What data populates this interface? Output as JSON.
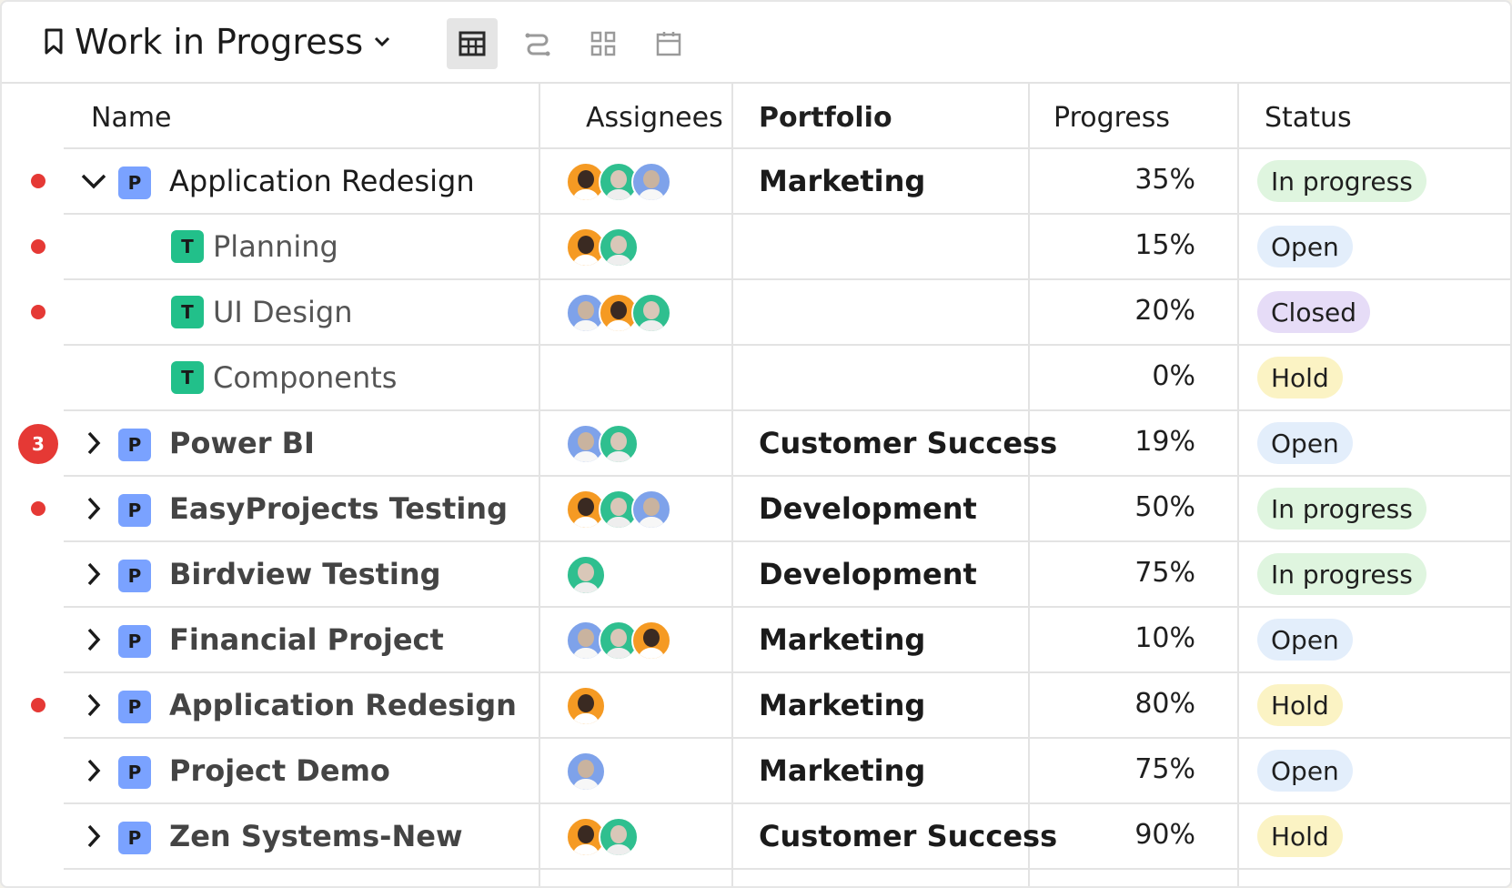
{
  "view": {
    "title": "Work in Progress",
    "icons": [
      "table-view-icon",
      "gantt-view-icon",
      "board-view-icon",
      "calendar-view-icon"
    ],
    "active_view": "table-view-icon"
  },
  "columns": {
    "name": "Name",
    "assignees": "Assignees",
    "portfolio": "Portfolio",
    "progress": "Progress",
    "status": "Status"
  },
  "status_colors": {
    "In progress": "#dff5df",
    "Open": "#e3eefb",
    "Closed": "#e6dcf7",
    "Hold": "#fbf3c4"
  },
  "rows": [
    {
      "marker": "dot",
      "toggle": "expanded",
      "type": "P",
      "name": "Application Redesign",
      "assignees": [
        "orange-dark",
        "green-light",
        "blue-mid"
      ],
      "portfolio": "Marketing",
      "progress": "35%",
      "status": "In progress"
    },
    {
      "marker": "dot",
      "toggle": "none",
      "type": "T",
      "name": "Planning",
      "assignees": [
        "orange-dark",
        "green-light"
      ],
      "portfolio": "",
      "progress": "15%",
      "status": "Open"
    },
    {
      "marker": "dot",
      "toggle": "none",
      "type": "T",
      "name": "UI Design",
      "assignees": [
        "blue-mid",
        "orange-dark",
        "green-light"
      ],
      "portfolio": "",
      "progress": "20%",
      "status": "Closed"
    },
    {
      "marker": "none",
      "toggle": "none",
      "type": "T",
      "name": "Components",
      "assignees": [],
      "portfolio": "",
      "progress": "0%",
      "status": "Hold"
    },
    {
      "marker": "count",
      "count": "3",
      "toggle": "collapsed",
      "type": "P",
      "name": "Power BI",
      "assignees": [
        "blue-mid",
        "green-light"
      ],
      "portfolio": "Customer Success",
      "progress": "19%",
      "status": "Open"
    },
    {
      "marker": "dot",
      "toggle": "collapsed",
      "type": "P",
      "name": "EasyProjects Testing",
      "assignees": [
        "orange-dark",
        "green-light",
        "blue-mid"
      ],
      "portfolio": "Development",
      "progress": "50%",
      "status": "In progress"
    },
    {
      "marker": "none",
      "toggle": "collapsed",
      "type": "P",
      "name": "Birdview Testing",
      "assignees": [
        "green-light"
      ],
      "portfolio": "Development",
      "progress": "75%",
      "status": "In progress"
    },
    {
      "marker": "none",
      "toggle": "collapsed",
      "type": "P",
      "name": "Financial Project",
      "assignees": [
        "blue-mid",
        "green-light",
        "orange-dark"
      ],
      "portfolio": "Marketing",
      "progress": "10%",
      "status": "Open"
    },
    {
      "marker": "dot",
      "toggle": "collapsed",
      "type": "P",
      "name": "Application Redesign",
      "assignees": [
        "orange-dark"
      ],
      "portfolio": "Marketing",
      "progress": "80%",
      "status": "Hold"
    },
    {
      "marker": "none",
      "toggle": "collapsed",
      "type": "P",
      "name": "Project Demo",
      "assignees": [
        "blue-mid"
      ],
      "portfolio": "Marketing",
      "progress": "75%",
      "status": "Open"
    },
    {
      "marker": "none",
      "toggle": "collapsed",
      "type": "P",
      "name": "Zen Systems-New",
      "assignees": [
        "orange-dark",
        "green-light"
      ],
      "portfolio": "Customer Success",
      "progress": "90%",
      "status": "Hold"
    }
  ]
}
